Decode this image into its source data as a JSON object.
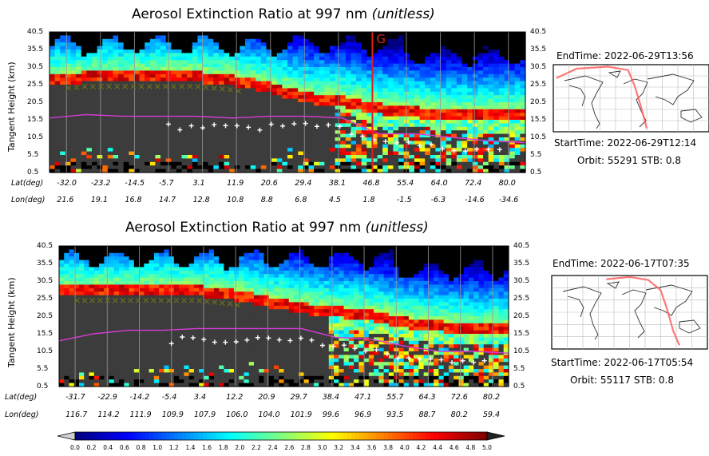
{
  "panels": [
    {
      "title_main": "Aerosol Extinction Ratio at 997 nm ",
      "title_unit": "(unitless)",
      "ylabel": "Tangent Height (km)",
      "marker_label": "G",
      "lat_label": "Lat(deg)",
      "lon_label": "Lon(deg)",
      "lat": [
        "-32.0",
        "-23.2",
        "-14.5",
        "-5.7",
        "3.1",
        "11.9",
        "20.6",
        "29.4",
        "38.1",
        "46.8",
        "55.4",
        "64.0",
        "72.4",
        "80.0"
      ],
      "lon": [
        "21.6",
        "19.1",
        "16.8",
        "14.7",
        "12.8",
        "10.8",
        "8.8",
        "6.8",
        "4.5",
        "1.8",
        "-1.5",
        "-6.3",
        "-14.6",
        "-34.6"
      ],
      "end_time": "EndTime: 2022-06-29T13:56",
      "start_time": "StartTime: 2022-06-29T12:14",
      "orbit": "Orbit: 55291  STB: 0.8"
    },
    {
      "title_main": "Aerosol Extinction Ratio at 997 nm ",
      "title_unit": "(unitless)",
      "ylabel": "Tangent Height (km)",
      "lat_label": "Lat(deg)",
      "lon_label": "Lon(deg)",
      "lat": [
        "-31.7",
        "-22.9",
        "-14.2",
        "-5.4",
        "3.4",
        "12.2",
        "20.9",
        "29.7",
        "38.4",
        "47.1",
        "55.7",
        "64.3",
        "72.6",
        "80.2"
      ],
      "lon": [
        "116.7",
        "114.2",
        "111.9",
        "109.9",
        "107.9",
        "106.0",
        "104.0",
        "101.9",
        "99.6",
        "96.9",
        "93.5",
        "88.7",
        "80.2",
        "59.4"
      ],
      "end_time": "EndTime: 2022-06-17T07:35",
      "start_time": "StartTime: 2022-06-17T05:54",
      "orbit": "Orbit: 55117  STB: 0.8"
    }
  ],
  "chart_data": [
    {
      "type": "heatmap",
      "title": "Aerosol Extinction Ratio at 997 nm (unitless)",
      "ylabel": "Tangent Height (km)",
      "y_ticks": [
        40.5,
        35.5,
        30.5,
        25.5,
        20.5,
        15.5,
        10.5,
        5.5,
        0.5
      ],
      "ylim": [
        0.5,
        40.5
      ],
      "x_lat": [
        -32.0,
        -23.2,
        -14.5,
        -5.7,
        3.1,
        11.9,
        20.6,
        29.4,
        38.1,
        46.8,
        55.4,
        64.0,
        72.4,
        80.0
      ],
      "x_lon": [
        21.6,
        19.1,
        16.8,
        14.7,
        12.8,
        10.8,
        8.8,
        6.8,
        4.5,
        1.8,
        -1.5,
        -6.3,
        -14.6,
        -34.6
      ],
      "tropopause_km": [
        16.0,
        17.0,
        16.5,
        16.5,
        16.5,
        16.0,
        16.5,
        16.5,
        16.0,
        11.5,
        11.5,
        10.5,
        9.5,
        9.0
      ],
      "aerosol_layer_top_km": [
        27,
        28,
        28,
        28,
        28,
        27,
        25,
        22,
        21,
        19,
        18,
        17,
        17,
        17
      ],
      "marker_lat": 46.8
    },
    {
      "type": "heatmap",
      "title": "Aerosol Extinction Ratio at 997 nm (unitless)",
      "ylabel": "Tangent Height (km)",
      "y_ticks": [
        40.5,
        35.5,
        30.5,
        25.5,
        20.5,
        15.5,
        10.5,
        5.5,
        0.5
      ],
      "ylim": [
        0.5,
        40.5
      ],
      "x_lat": [
        -31.7,
        -22.9,
        -14.2,
        -5.4,
        3.4,
        12.2,
        20.9,
        29.7,
        38.4,
        47.1,
        55.7,
        64.3,
        72.6,
        80.2
      ],
      "x_lon": [
        116.7,
        114.2,
        111.9,
        109.9,
        107.9,
        106.0,
        104.0,
        101.9,
        99.6,
        96.9,
        93.5,
        88.7,
        80.2,
        59.4
      ],
      "tropopause_km": [
        13.5,
        15.5,
        16.5,
        16.5,
        17.0,
        17.0,
        17.0,
        17.0,
        14.5,
        14.0,
        12.0,
        10.5,
        10.5,
        10.0
      ],
      "aerosol_layer_top_km": [
        28,
        28,
        28,
        28,
        28,
        27,
        25,
        23,
        22,
        21,
        19,
        18,
        17,
        17
      ]
    }
  ],
  "colorbar": {
    "ticks": [
      "0.0",
      "0.2",
      "0.4",
      "0.6",
      "0.8",
      "1.0",
      "1.2",
      "1.4",
      "1.6",
      "1.8",
      "2.0",
      "2.2",
      "2.4",
      "2.6",
      "2.8",
      "3.0",
      "3.2",
      "3.4",
      "3.6",
      "3.8",
      "4.0",
      "4.2",
      "4.4",
      "4.6",
      "4.8",
      "5.0"
    ],
    "range": [
      0,
      5
    ],
    "colormap": "jet"
  },
  "colors": {
    "tropopause_line": "#d63cd6",
    "marker_line": "#e02020",
    "no_data": "#3c3c3c",
    "top_mask": "#000000",
    "cloud_marker": "#ffffff",
    "x_marker": "#6b6b1f",
    "orbit_track": "#ff6060"
  }
}
